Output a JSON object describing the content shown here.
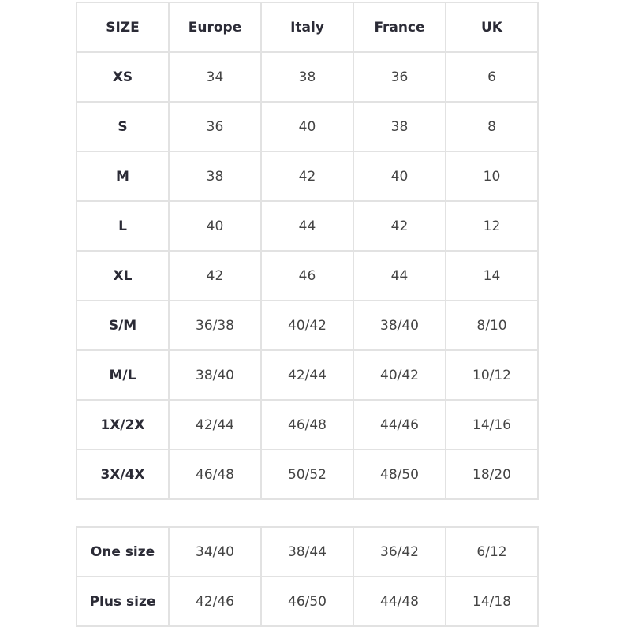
{
  "size_table": {
    "headers": [
      "SIZE",
      "Europe",
      "Italy",
      "France",
      "UK"
    ],
    "rows": [
      [
        "XS",
        "34",
        "38",
        "36",
        "6"
      ],
      [
        "S",
        "36",
        "40",
        "38",
        "8"
      ],
      [
        "M",
        "38",
        "42",
        "40",
        "10"
      ],
      [
        "L",
        "40",
        "44",
        "42",
        "12"
      ],
      [
        "XL",
        "42",
        "46",
        "44",
        "14"
      ],
      [
        "S/M",
        "36/38",
        "40/42",
        "38/40",
        "8/10"
      ],
      [
        "M/L",
        "38/40",
        "42/44",
        "40/42",
        "10/12"
      ],
      [
        "1X/2X",
        "42/44",
        "46/48",
        "44/46",
        "14/16"
      ],
      [
        "3X/4X",
        "46/48",
        "50/52",
        "48/50",
        "18/20"
      ]
    ]
  },
  "fit_table": {
    "rows": [
      [
        "One size",
        "34/40",
        "38/44",
        "36/42",
        "6/12"
      ],
      [
        "Plus size",
        "42/46",
        "46/50",
        "44/48",
        "14/18"
      ]
    ]
  }
}
